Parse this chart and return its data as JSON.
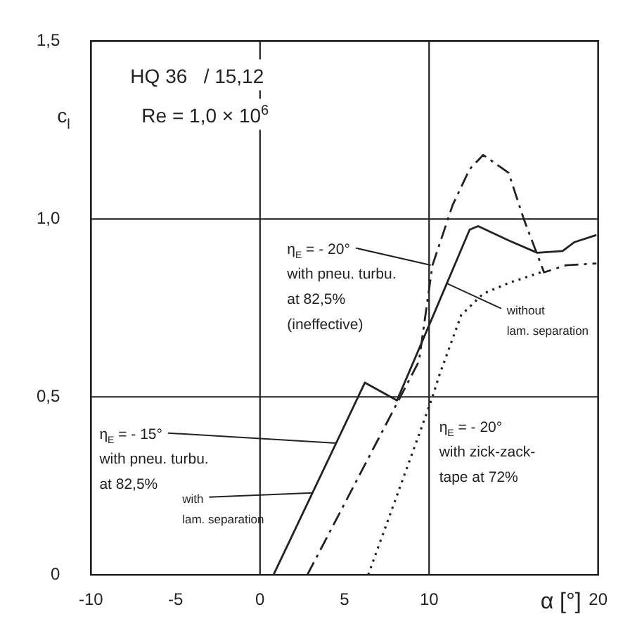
{
  "chart_data": {
    "type": "line",
    "title": "HQ 36   / 15,12",
    "subtitle": "Re = 1,0 × 10$^{6}$",
    "xlabel": "α [°]",
    "ylabel": "c$_{l}$",
    "xlim": [
      -10,
      20
    ],
    "xticks": [
      -10,
      -5,
      0,
      5,
      10,
      20
    ],
    "ylim": [
      0,
      1.5
    ],
    "yticks": [
      {
        "value": 0,
        "label": "0"
      },
      {
        "value": 0.5,
        "label": "0,5"
      },
      {
        "value": 1,
        "label": "1,0"
      },
      {
        "value": 1.5,
        "label": "1,5"
      }
    ],
    "grid": false,
    "legend": false,
    "marker": "none",
    "ref_lines": [
      {
        "axis": "x",
        "value": 0
      },
      {
        "axis": "x",
        "value": 10
      },
      {
        "axis": "y",
        "value": 0.5
      },
      {
        "axis": "y",
        "value": 1
      }
    ],
    "series": [
      {
        "color": "#222222",
        "line_style": "solid",
        "x": [
          0.8,
          6.2,
          8.1,
          9.9,
          12.4,
          12.9,
          14.7,
          16.4,
          17.9,
          18.6,
          19.9
        ],
        "values": [
          0,
          0.54,
          0.49,
          0.69,
          0.97,
          0.98,
          0.94,
          0.905,
          0.91,
          0.935,
          0.955
        ]
      },
      {
        "color": "#222222",
        "line_style": "dashed",
        "x": [
          2.8,
          9.4,
          10.2,
          11.4,
          12.4,
          13.2,
          14.7,
          15.6,
          16.8,
          18.1,
          19.9
        ],
        "values": [
          0,
          0.6,
          0.87,
          1.04,
          1.14,
          1.18,
          1.13,
          1.0,
          0.85,
          0.87,
          0.875
        ]
      },
      {
        "color": "#222222",
        "line_style": "dotted",
        "x": [
          6.4,
          9.6,
          10.2,
          10.6,
          11.9,
          13.2,
          14.7,
          16.6
        ],
        "values": [
          0,
          0.42,
          0.5,
          0.56,
          0.73,
          0.79,
          0.82,
          0.85
        ]
      }
    ],
    "annotations": [
      {
        "text": "η$_{E}$ = - 20°\nwith pneu. turbu.\nat 82,5%\n(ineffective)",
        "x": 10.1,
        "y": 0.87
      },
      {
        "text": "with\nlam. separation",
        "x": 3.1,
        "y": 0.23
      },
      {
        "text": "without\nlam. separation",
        "x": 11,
        "y": 0.82
      },
      {
        "text": "η$_{E}$ = - 15°\nwith pneu. turbu.\nat 82,5%",
        "x": 4.5,
        "y": 0.37
      },
      "η$_{E}$ = - 20°\nwith zick-zack-\ntape at 72%"
    ]
  }
}
